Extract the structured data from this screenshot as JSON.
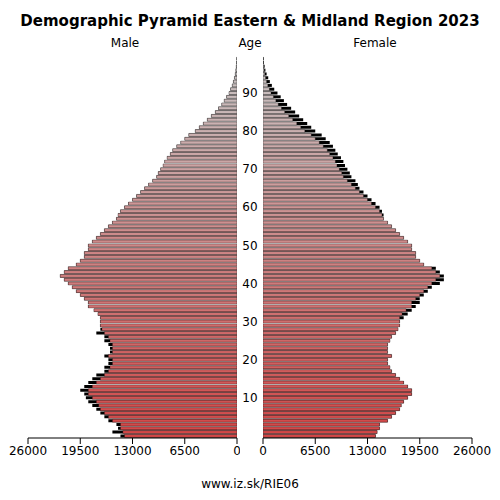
{
  "chart_data": {
    "type": "population_pyramid",
    "title": "Demographic Pyramid Eastern & Midland Region 2023",
    "y_label": "Age",
    "source": "www.iz.sk/RIE06",
    "orientation": "horizontal",
    "categories": [
      null,
      null,
      null,
      null,
      null,
      null,
      null,
      null,
      null,
      null,
      "10",
      null,
      null,
      null,
      null,
      null,
      null,
      null,
      null,
      null,
      "20",
      null,
      null,
      null,
      null,
      null,
      null,
      null,
      null,
      null,
      "30",
      null,
      null,
      null,
      null,
      null,
      null,
      null,
      null,
      null,
      "40",
      null,
      null,
      null,
      null,
      null,
      null,
      null,
      null,
      null,
      "50",
      null,
      null,
      null,
      null,
      null,
      null,
      null,
      null,
      null,
      "60",
      null,
      null,
      null,
      null,
      null,
      null,
      null,
      null,
      null,
      "70",
      null,
      null,
      null,
      null,
      null,
      null,
      null,
      null,
      null,
      "80",
      null,
      null,
      null,
      null,
      null,
      null,
      null,
      null,
      null,
      "90",
      null,
      null,
      null,
      null,
      null,
      null,
      null,
      null,
      null
    ],
    "series": [
      {
        "name": "Male",
        "values": [
          14500,
          15500,
          14800,
          15000,
          16000,
          16500,
          17000,
          17500,
          18000,
          18500,
          18800,
          19000,
          19500,
          19000,
          18500,
          18000,
          17500,
          16500,
          16500,
          16000,
          16000,
          16500,
          15800,
          15800,
          16000,
          16500,
          16500,
          17500,
          17000,
          17000,
          17000,
          17000,
          17300,
          17800,
          18500,
          18500,
          19000,
          19500,
          20000,
          20500,
          21000,
          21500,
          22000,
          21500,
          21000,
          20000,
          19500,
          19000,
          19000,
          18500,
          18500,
          18000,
          17500,
          17000,
          16500,
          16000,
          15500,
          15000,
          14800,
          14500,
          14000,
          13500,
          13000,
          12500,
          12000,
          11500,
          11000,
          10500,
          10000,
          9800,
          9500,
          9200,
          9000,
          8700,
          8300,
          8000,
          7500,
          7000,
          6500,
          6000,
          5200,
          4700,
          4200,
          3700,
          3200,
          2700,
          2300,
          1900,
          1600,
          1300,
          1000,
          800,
          600,
          450,
          320,
          220,
          150,
          100,
          60,
          40
        ]
      },
      {
        "name": "Female",
        "values": [
          14000,
          14200,
          14500,
          14500,
          15500,
          16000,
          16500,
          17000,
          17200,
          17500,
          18000,
          18500,
          18500,
          18000,
          17500,
          17000,
          16500,
          16000,
          15800,
          15500,
          15500,
          16000,
          15500,
          15500,
          15500,
          15800,
          16000,
          16500,
          16800,
          17000,
          17000,
          17500,
          18000,
          18500,
          19000,
          19500,
          19500,
          20000,
          20500,
          21000,
          22000,
          22500,
          22500,
          22000,
          21500,
          20000,
          19500,
          19000,
          19000,
          18500,
          18500,
          18000,
          17500,
          17000,
          16500,
          16000,
          15500,
          15000,
          15000,
          14800,
          14500,
          14000,
          13500,
          13000,
          12500,
          12000,
          11800,
          11500,
          11000,
          10800,
          10500,
          10200,
          10000,
          9700,
          9300,
          9000,
          8700,
          8300,
          7800,
          7300,
          6500,
          6000,
          5500,
          5000,
          4500,
          4000,
          3500,
          3000,
          2600,
          2200,
          1800,
          1400,
          1100,
          850,
          650,
          450,
          300,
          200,
          120,
          80
        ]
      }
    ],
    "xlim": [
      0,
      26000
    ],
    "xticks": [
      0,
      6500,
      13000,
      19500,
      26000
    ]
  }
}
